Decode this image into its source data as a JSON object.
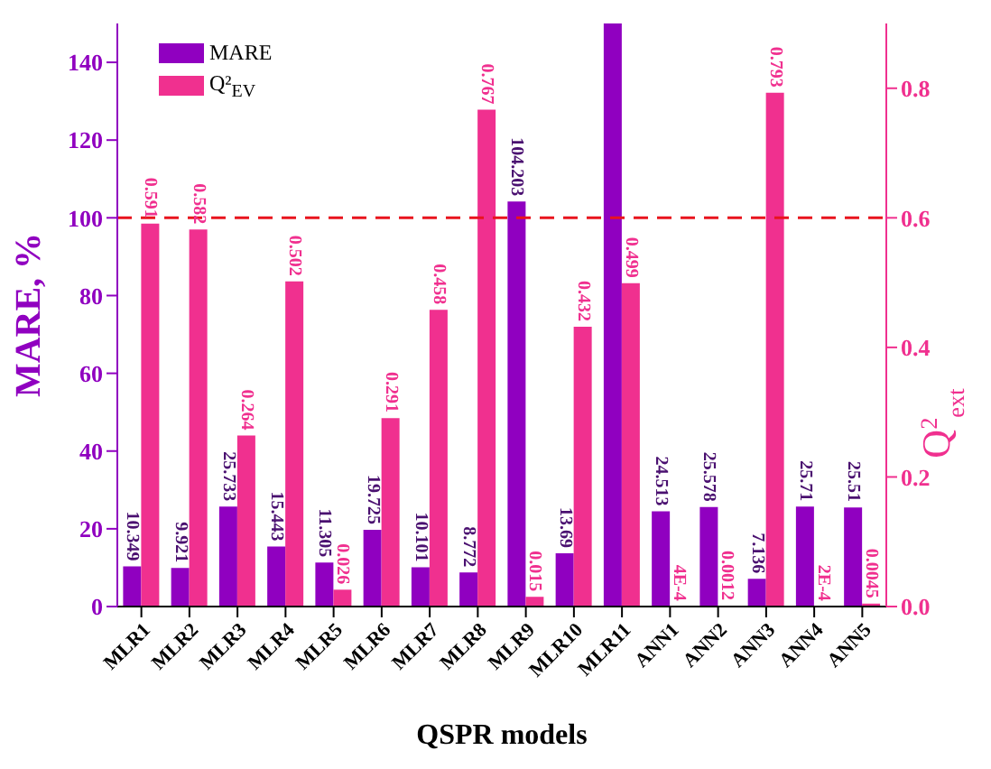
{
  "chart_data": {
    "type": "bar",
    "xlabel": "QSPR models",
    "ylabel": "MARE, %",
    "y2label": "Q$^{2}$$_{ext}$",
    "categories": [
      "MLR1",
      "MLR2",
      "MLR3",
      "MLR4",
      "MLR5",
      "MLR6",
      "MLR7",
      "MLR8",
      "MLR9",
      "MLR10",
      "MLR11",
      "ANN1",
      "ANN2",
      "ANN3",
      "ANN4",
      "ANN5"
    ],
    "series": [
      {
        "name": "MARE",
        "color": "#9000c0",
        "values": [
          10.349,
          9.921,
          25.733,
          15.443,
          11.305,
          19.725,
          10.101,
          8.772,
          104.203,
          13.69,
          150,
          24.513,
          25.578,
          7.136,
          25.71,
          25.51
        ],
        "value_labels": [
          "10.349",
          "9.921",
          "25.733",
          "15.443",
          "11.305",
          "19.725",
          "10.101",
          "8.772",
          "104.203",
          "13.69",
          null,
          "24.513",
          "25.578",
          "7.136",
          "25.71",
          "25.51"
        ]
      },
      {
        "name": "Q²$_{EV}$",
        "color": "#f0308f",
        "axis": "y2",
        "values": [
          0.591,
          0.582,
          0.264,
          0.502,
          0.026,
          0.291,
          0.458,
          0.767,
          0.015,
          0.432,
          0.499,
          0.0004,
          0.0012,
          0.793,
          0.0002,
          0.0045
        ],
        "value_labels": [
          "0.591",
          "0.582",
          "0.264",
          "0.502",
          "0.026",
          "0.291",
          "0.458",
          "0.767",
          "0.015",
          "0.432",
          "0.499",
          "4E-4",
          "0.0012",
          "0.793",
          "2E-4",
          "0.0045"
        ]
      }
    ],
    "ylim": [
      0,
      150
    ],
    "yticks": [
      0,
      20,
      40,
      60,
      80,
      100,
      120,
      140
    ],
    "y2lim": [
      0,
      0.9
    ],
    "y2ticks": [
      {
        "value": 0,
        "label": "0.0"
      },
      0.2,
      0.4,
      0.6,
      0.8
    ],
    "ref_lines": [
      {
        "axis": "y",
        "value": 100,
        "color": "#e8141e",
        "line_style": "dashed"
      }
    ],
    "legend": "top left",
    "grid": false
  }
}
